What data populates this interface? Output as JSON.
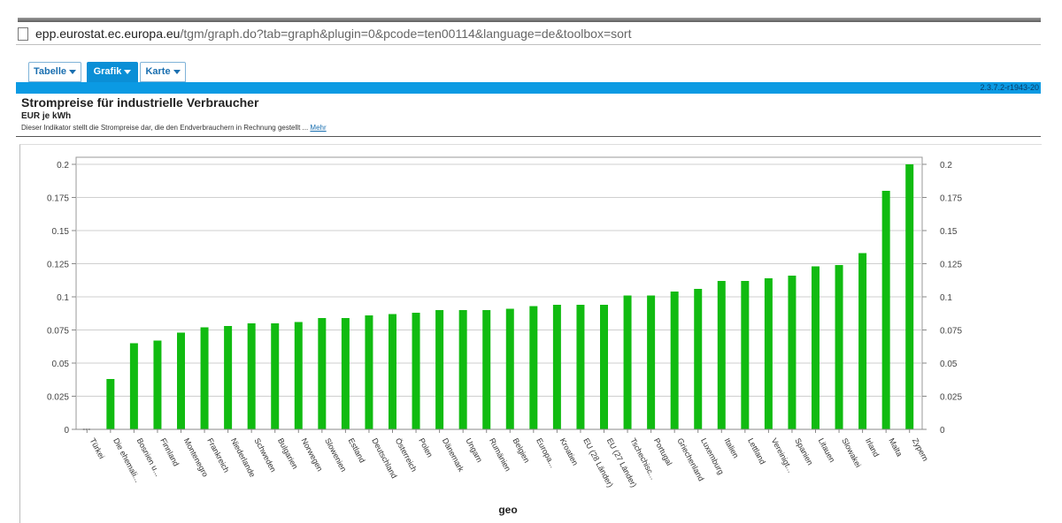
{
  "browser": {
    "url_host": "epp.eurostat.ec.europa.eu",
    "url_path": "/tgm/graph.do?tab=graph&plugin=0&pcode=ten00114&language=de&toolbox=sort"
  },
  "tabs": [
    {
      "label": "Tabelle",
      "active": false
    },
    {
      "label": "Grafik",
      "active": true
    },
    {
      "label": "Karte",
      "active": false
    }
  ],
  "version": "2.3.7.2-r1943-20",
  "header": {
    "title": "Strompreise für industrielle Verbraucher",
    "unit": "EUR je kWh",
    "description": "Dieser Indikator stellt die Strompreise dar, die den Endverbrauchern in Rechnung gestellt ...",
    "more_link": "Mehr"
  },
  "colors": {
    "bar": "#11bb11",
    "accent": "#0b9ae3"
  },
  "chart_data": {
    "type": "bar",
    "xlabel": "geo",
    "ylabel": "",
    "ylim": [
      0,
      0.2
    ],
    "yticks": [
      "0",
      "0.025",
      "0.05",
      "0.075",
      "0.1",
      "0.125",
      "0.15",
      "0.175",
      "0.2"
    ],
    "grid": true,
    "categories": [
      "Türkei",
      "Die ehemali...",
      "Bosnien u...",
      "Finnland",
      "Montenegro",
      "Frankreich",
      "Niederlande",
      "Schweden",
      "Bulgarien",
      "Norwegen",
      "Slowenien",
      "Estland",
      "Deutschland",
      "Österreich",
      "Polen",
      "Dänemark",
      "Ungarn",
      "Rumänien",
      "Belgien",
      "Europa...",
      "Kroatien",
      "EU (28 Länder)",
      "EU (27 Länder)",
      "Tschechisc...",
      "Portugal",
      "Griechenland",
      "Luxemburg",
      "Italien",
      "Lettland",
      "Vereinigt...",
      "Spanien",
      "Litauen",
      "Slowakei",
      "Irland",
      "Malta",
      "Zypern"
    ],
    "values": [
      0,
      0.038,
      0.065,
      0.067,
      0.073,
      0.077,
      0.078,
      0.08,
      0.08,
      0.081,
      0.084,
      0.084,
      0.086,
      0.087,
      0.088,
      0.09,
      0.09,
      0.09,
      0.091,
      0.093,
      0.094,
      0.094,
      0.094,
      0.101,
      0.101,
      0.104,
      0.106,
      0.112,
      0.112,
      0.114,
      0.116,
      0.123,
      0.124,
      0.133,
      0.18,
      0.2
    ]
  }
}
